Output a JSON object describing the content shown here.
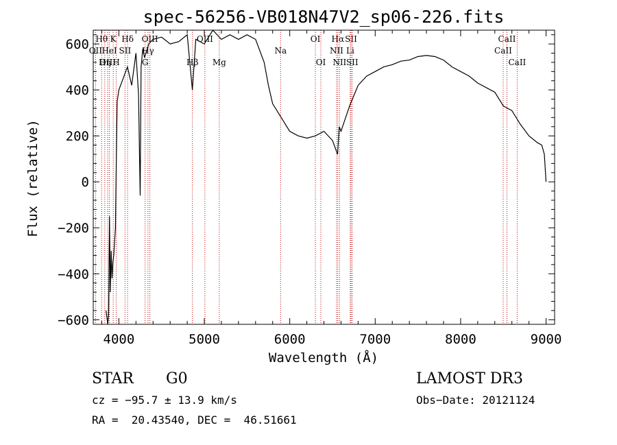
{
  "chart_data": {
    "type": "line",
    "title": "spec-56256-VB018N47V2_sp06-226.fits",
    "xlabel": "Wavelength (Å)",
    "ylabel": "Flux (relative)",
    "xlim": [
      3700,
      9100
    ],
    "ylim": [
      -620,
      660
    ],
    "xticks": [
      4000,
      5000,
      6000,
      7000,
      8000,
      9000
    ],
    "yticks": [
      -600,
      -400,
      -200,
      0,
      200,
      400,
      600
    ],
    "spectrum": {
      "x": [
        3850,
        3870,
        3880,
        3890,
        3900,
        3910,
        3920,
        3930,
        3940,
        3960,
        3970,
        3980,
        4000,
        4050,
        4100,
        4150,
        4200,
        4230,
        4240,
        4250,
        4260,
        4280,
        4300,
        4350,
        4400,
        4500,
        4600,
        4700,
        4800,
        4860,
        4900,
        5000,
        5100,
        5200,
        5300,
        5400,
        5500,
        5600,
        5700,
        5750,
        5800,
        5900,
        6000,
        6100,
        6200,
        6300,
        6400,
        6500,
        6560,
        6580,
        6600,
        6700,
        6800,
        6900,
        7000,
        7100,
        7200,
        7300,
        7400,
        7500,
        7600,
        7700,
        7800,
        7900,
        8000,
        8100,
        8200,
        8300,
        8400,
        8500,
        8550,
        8600,
        8700,
        8800,
        8900,
        8950,
        8980,
        9000
      ],
      "y": [
        -560,
        -620,
        -580,
        -150,
        -480,
        -300,
        -420,
        -350,
        -320,
        -200,
        100,
        350,
        400,
        450,
        500,
        420,
        560,
        380,
        150,
        -60,
        500,
        580,
        540,
        600,
        620,
        630,
        600,
        610,
        640,
        400,
        620,
        600,
        660,
        620,
        640,
        620,
        640,
        620,
        520,
        420,
        340,
        280,
        220,
        200,
        190,
        200,
        220,
        180,
        120,
        240,
        220,
        330,
        420,
        460,
        480,
        500,
        510,
        525,
        530,
        545,
        550,
        545,
        530,
        500,
        480,
        460,
        430,
        410,
        390,
        330,
        320,
        310,
        250,
        200,
        170,
        160,
        120,
        0
      ]
    },
    "lines": [
      {
        "label": "Hθ",
        "x": 3798,
        "row": 0
      },
      {
        "label": "OII",
        "x": 3727,
        "row": 1
      },
      {
        "label": "OIII",
        "x": 3869,
        "row": 2
      },
      {
        "label": "HeI",
        "x": 3889,
        "row": 1
      },
      {
        "label": "Hη",
        "x": 3835,
        "row": 2
      },
      {
        "label": "K",
        "x": 3934,
        "row": 0
      },
      {
        "label": "H",
        "x": 3969,
        "row": 2
      },
      {
        "label": "SII",
        "x": 4072,
        "row": 1
      },
      {
        "label": "Hδ",
        "x": 4102,
        "row": 0
      },
      {
        "label": "OIII",
        "x": 4363,
        "row": 0
      },
      {
        "label": "Hγ",
        "x": 4341,
        "row": 1
      },
      {
        "label": "G",
        "x": 4307,
        "row": 2
      },
      {
        "label": "Hβ",
        "x": 4861,
        "row": 2
      },
      {
        "label": "OIII",
        "x": 5007,
        "row": 0
      },
      {
        "label": "Mg",
        "x": 5175,
        "row": 2
      },
      {
        "label": "Na",
        "x": 5893,
        "row": 1
      },
      {
        "label": "OI",
        "x": 6300,
        "row": 0
      },
      {
        "label": "OI",
        "x": 6364,
        "row": 2
      },
      {
        "label": "Hα",
        "x": 6563,
        "row": 0
      },
      {
        "label": "NII",
        "x": 6548,
        "row": 1
      },
      {
        "label": "NII",
        "x": 6583,
        "row": 2
      },
      {
        "label": "SII",
        "x": 6717,
        "row": 0
      },
      {
        "label": "Li",
        "x": 6708,
        "row": 1
      },
      {
        "label": "SII",
        "x": 6731,
        "row": 2
      },
      {
        "label": "CaII",
        "x": 8542,
        "row": 0
      },
      {
        "label": "CaII",
        "x": 8498,
        "row": 1
      },
      {
        "label": "CaII",
        "x": 8662,
        "row": 2
      }
    ]
  },
  "info": {
    "class": "STAR",
    "subclass": "G0",
    "survey": "LAMOST DR3",
    "cz": "cz = −95.7 ± 13.9 km/s",
    "obs_date": "Obs−Date: 20121124",
    "radec": "RA =  20.43540, DEC =  46.51661"
  }
}
